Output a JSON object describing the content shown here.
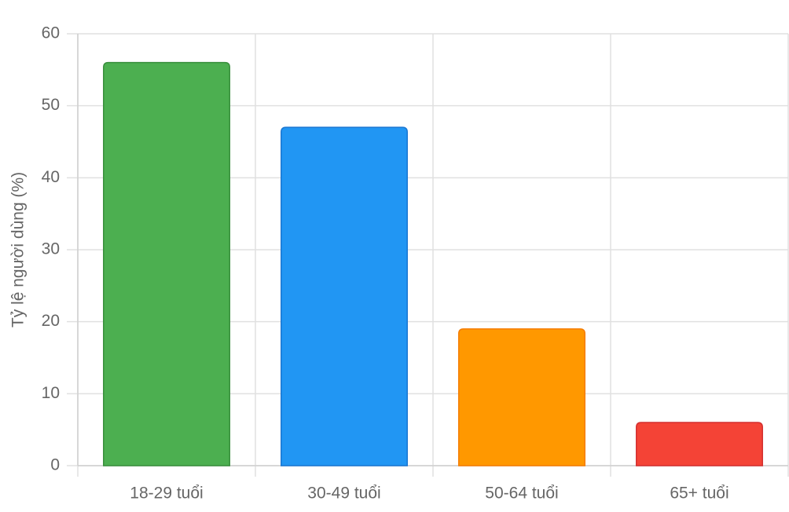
{
  "chart_data": {
    "type": "bar",
    "y_label": "Tỷ lệ người dùng (%)",
    "categories": [
      "18-29 tuổi",
      "30-49 tuổi",
      "50-64 tuổi",
      "65+ tuổi"
    ],
    "values": [
      56,
      47,
      19,
      6
    ],
    "colors": [
      "#4caf50",
      "#2196f3",
      "#ff9800",
      "#f44336"
    ],
    "border_colors": [
      "#388e3c",
      "#1976d2",
      "#f57c00",
      "#d32f2f"
    ],
    "ylim": [
      0,
      60
    ],
    "yticks": [
      0,
      10,
      20,
      30,
      40,
      50,
      60
    ],
    "grid": true
  }
}
